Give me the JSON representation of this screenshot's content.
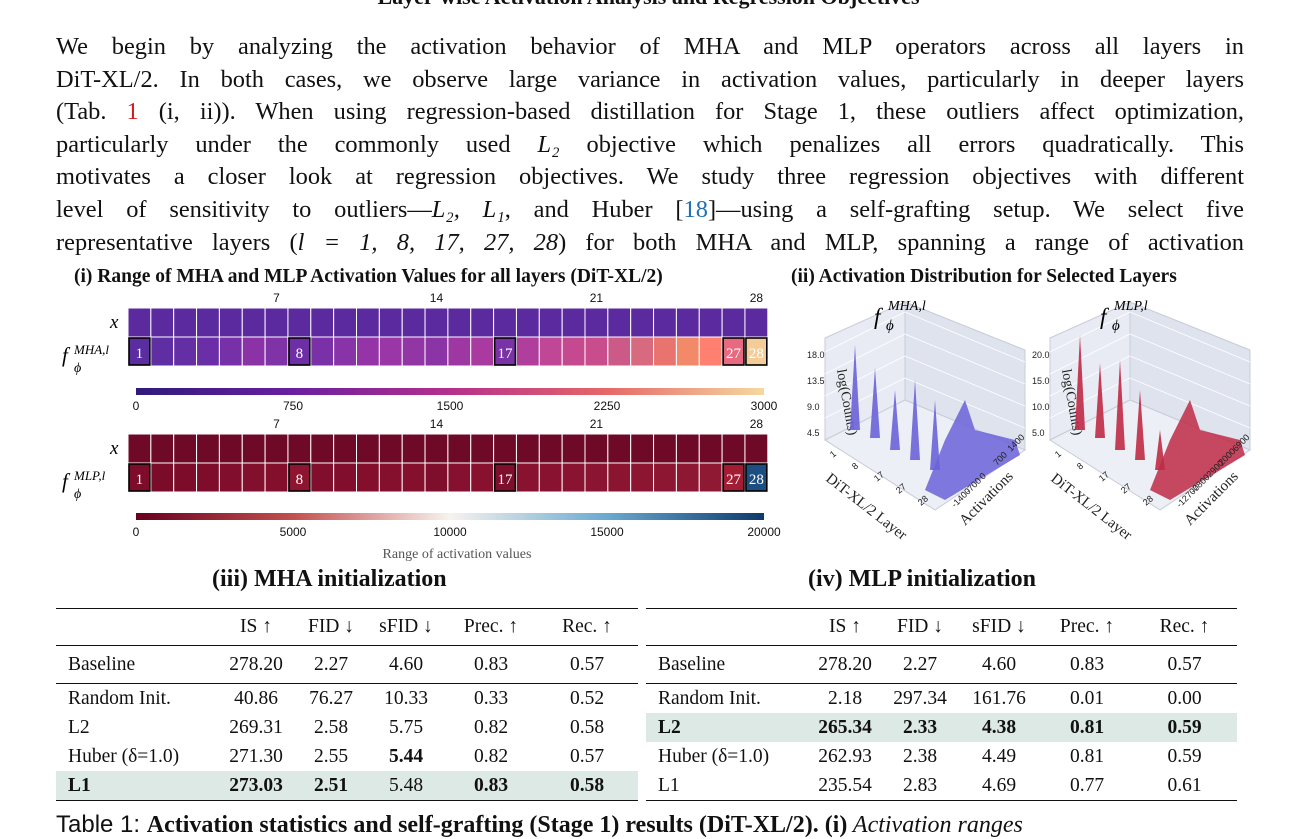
{
  "section_heading": "Layer-wise Activation Analysis and Regression Objectives",
  "paragraph": {
    "lines": [
      [
        "We begin by analyzing the activation behavior of MHA and MLP operators across all layers in"
      ],
      [
        "DiT-XL/2. In both cases, we observe large variance in activation values, particularly in deeper layers"
      ],
      [
        "(Tab. ",
        "1",
        " (i, ii)). When using regression-based distillation for Stage 1, these outliers affect optimization,"
      ],
      [
        "particularly under the commonly used ",
        "L₂",
        " objective which penalizes all errors quadratically. This"
      ],
      [
        "motivates a closer look at regression objectives. We study three regression objectives with different"
      ],
      [
        "level of sensitivity to outliers—",
        "L₂, L₁",
        ", and Huber [",
        "18",
        "]—using a self-grafting setup. We select five"
      ],
      [
        "representative layers (",
        "l = 1, 8, 17, 27, 28",
        ") for both MHA and MLP, spanning a range of activation"
      ]
    ]
  },
  "figure": {
    "panel_i_title": "(i) Range of MHA and MLP Activation Values for all layers (DiT-XL/2)",
    "panel_ii_title": "(ii) Activation Distribution for Selected Layers",
    "row_x_label": "x",
    "mha_label_base": "f",
    "mha_label_sub": "ϕ",
    "mha_label_sup": "MHA,l",
    "mlp_label_sup": "MLP,l",
    "layer_ticks": [
      "7",
      "14",
      "21",
      "28"
    ],
    "selected_layers": [
      "1",
      "8",
      "17",
      "27",
      "28"
    ],
    "mha_colorbar_ticks": [
      "0",
      "750",
      "1500",
      "2250",
      "3000"
    ],
    "mlp_colorbar_ticks": [
      "0",
      "5000",
      "10000",
      "15000",
      "20000"
    ],
    "colorbar_caption": "Range of activation values",
    "plot3d_zlabel": "log(Counts)",
    "plot3d_xlabel": "DiT-XL/2 Layer",
    "plot3d_ylabel": "Activations",
    "plot3d_layer_ticks": [
      "1",
      "8",
      "17",
      "27",
      "28"
    ],
    "mha_3d_z_ticks": [
      "18.0",
      "13.5",
      "9.0",
      "4.5"
    ],
    "mha_3d_y_ticks": [
      "1400",
      "700",
      "0",
      "-700",
      "-1400"
    ],
    "mlp_3d_z_ticks": [
      "20.0",
      "15.0",
      "10.0",
      "5.0"
    ],
    "mlp_3d_y_ticks": [
      "6900",
      "2000",
      "-2900",
      "-7800",
      "-12700"
    ],
    "colors": {
      "mha_accent": "#6b62d8",
      "mlp_accent": "#c02a45",
      "pane": "#e8ebf3"
    }
  },
  "tables": {
    "mha_title": "(iii) MHA initialization",
    "mlp_title": "(iv) MLP initialization",
    "headers": [
      "",
      "IS ↑",
      "FID ↓",
      "sFID ↓",
      "Prec. ↑",
      "Rec. ↑"
    ],
    "mha_rows": [
      {
        "label": "Baseline",
        "vals": [
          "278.20",
          "2.27",
          "4.60",
          "0.83",
          "0.57"
        ],
        "bold": [],
        "hl": false
      },
      {
        "label": "Random Init.",
        "vals": [
          "40.86",
          "76.27",
          "10.33",
          "0.33",
          "0.52"
        ],
        "bold": [],
        "hl": false
      },
      {
        "label": "L2",
        "vals": [
          "269.31",
          "2.58",
          "5.75",
          "0.82",
          "0.58"
        ],
        "bold": [],
        "hl": false
      },
      {
        "label": "Huber (δ=1.0)",
        "vals": [
          "271.30",
          "2.55",
          "5.44",
          "0.82",
          "0.57"
        ],
        "bold": [
          2
        ],
        "hl": false
      },
      {
        "label": "L1",
        "vals": [
          "273.03",
          "2.51",
          "5.48",
          "0.83",
          "0.58"
        ],
        "bold": [
          -1,
          0,
          1,
          3,
          4
        ],
        "hl": true
      }
    ],
    "mlp_rows": [
      {
        "label": "Baseline",
        "vals": [
          "278.20",
          "2.27",
          "4.60",
          "0.83",
          "0.57"
        ],
        "bold": [],
        "hl": false
      },
      {
        "label": "Random Init.",
        "vals": [
          "2.18",
          "297.34",
          "161.76",
          "0.01",
          "0.00"
        ],
        "bold": [],
        "hl": false
      },
      {
        "label": "L2",
        "vals": [
          "265.34",
          "2.33",
          "4.38",
          "0.81",
          "0.59"
        ],
        "bold": [
          -1,
          0,
          1,
          2,
          3,
          4
        ],
        "hl": true
      },
      {
        "label": "Huber (δ=1.0)",
        "vals": [
          "262.93",
          "2.38",
          "4.49",
          "0.81",
          "0.59"
        ],
        "bold": [],
        "hl": false
      },
      {
        "label": "L1",
        "vals": [
          "235.54",
          "2.83",
          "4.69",
          "0.77",
          "0.61"
        ],
        "bold": [],
        "hl": false
      }
    ]
  },
  "caption": {
    "prefix": "Table 1: ",
    "bold": "Activation statistics and self-grafting (Stage 1) results (DiT-XL/2). (i)",
    "italic": " Activation ranges"
  }
}
